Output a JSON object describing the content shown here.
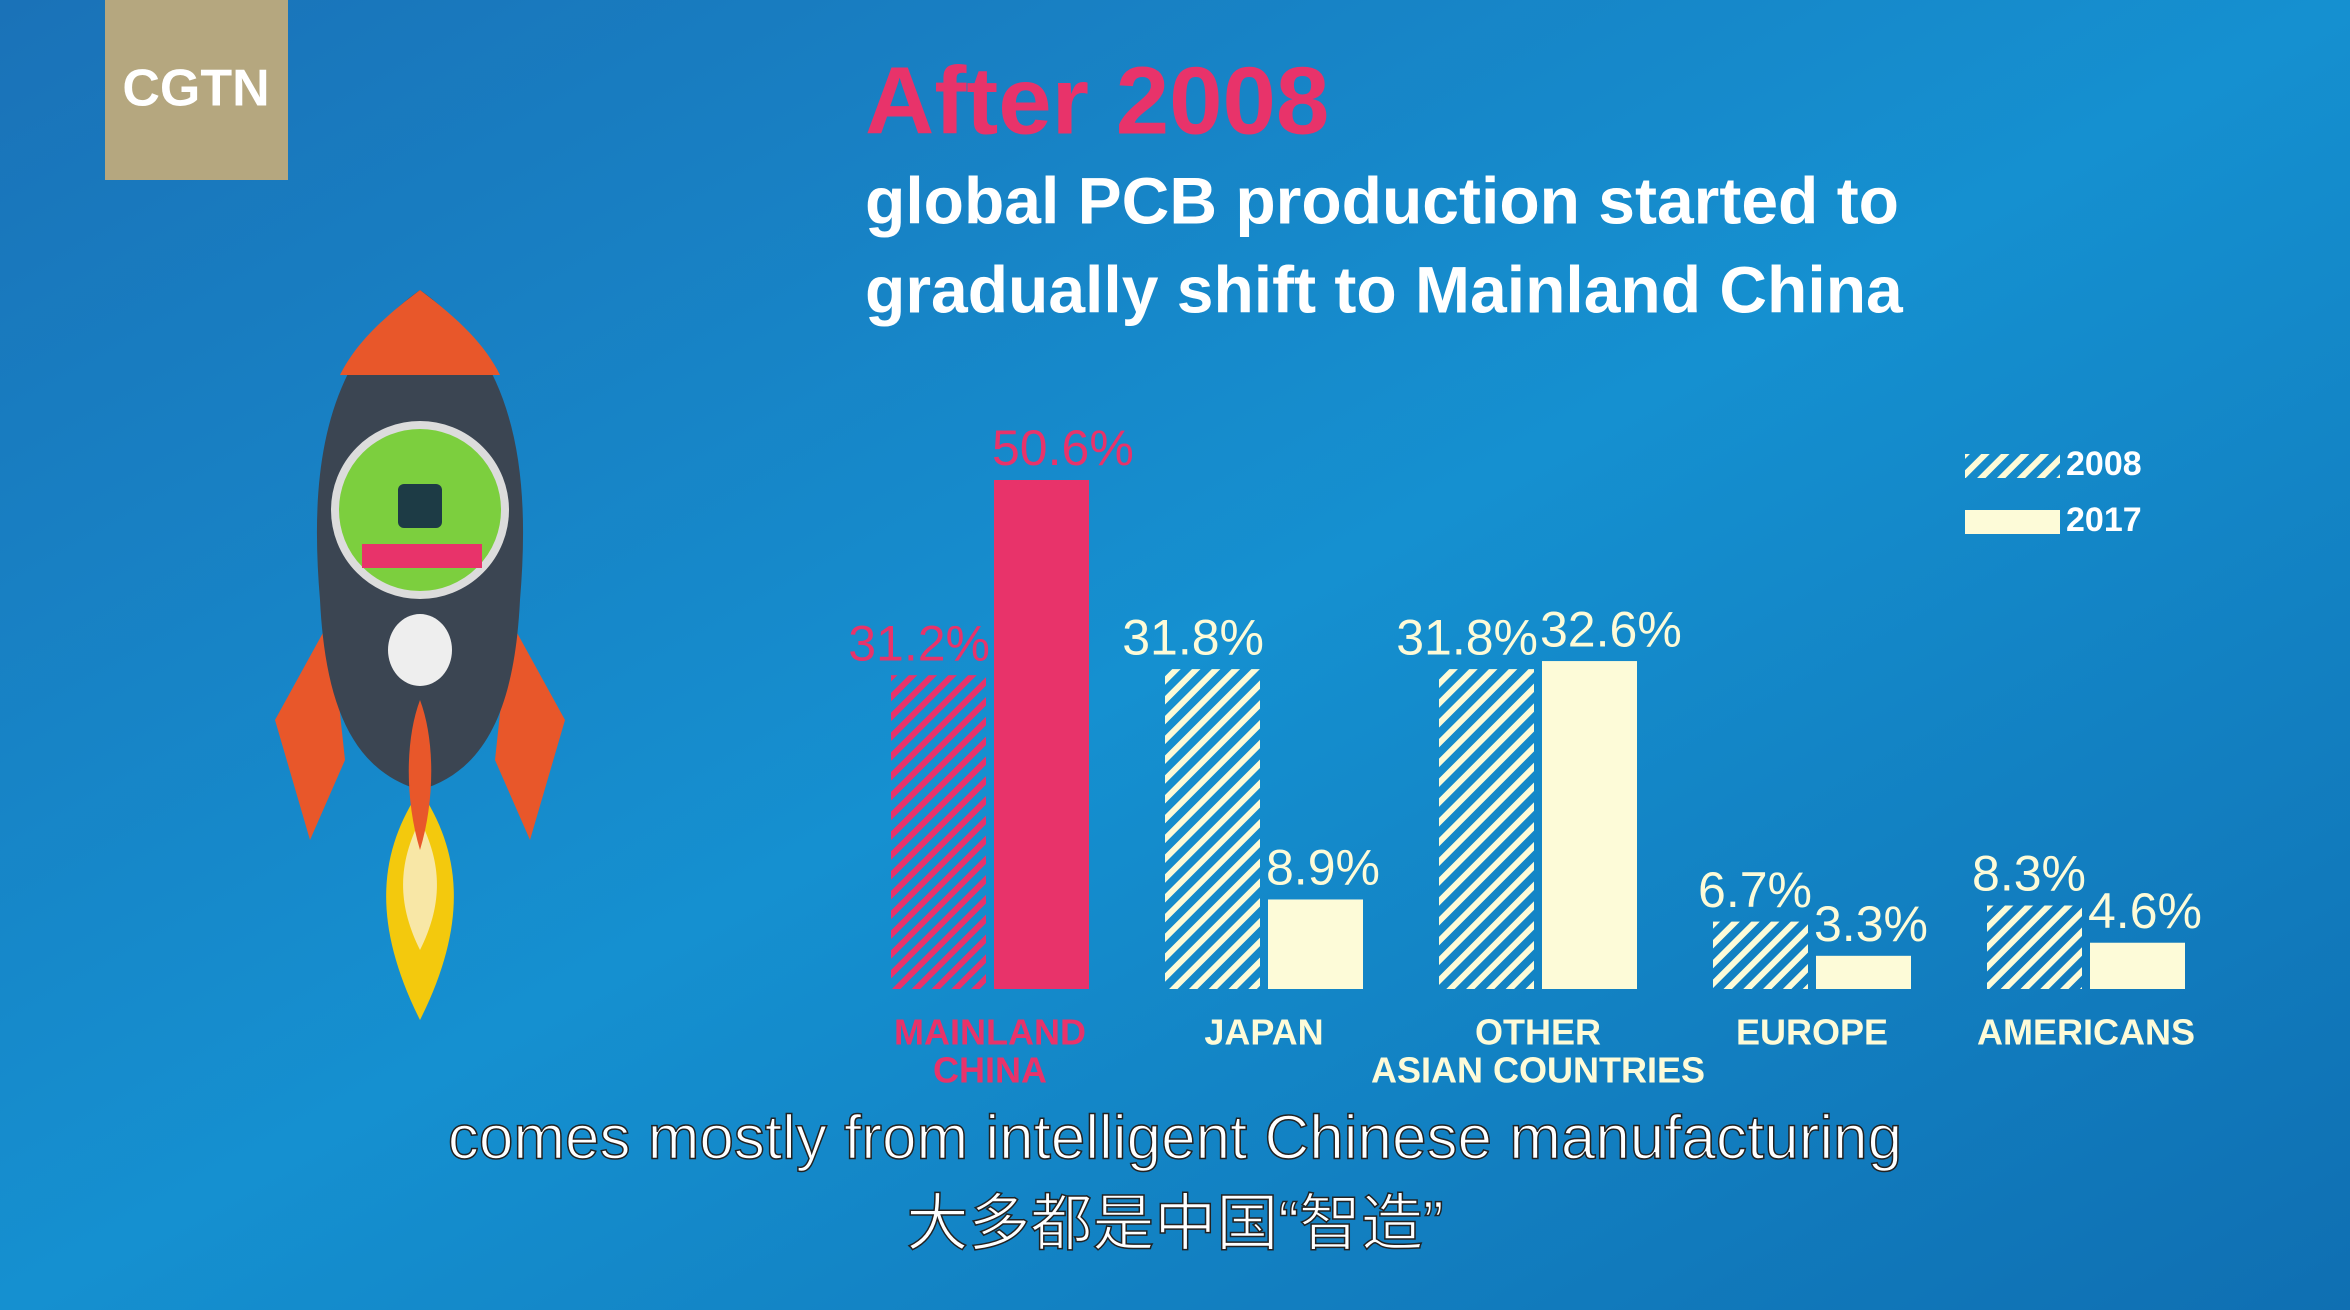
{
  "logo": "CGTN",
  "chart_data": {
    "type": "bar",
    "title": "After 2008",
    "subtitle_lines": [
      "global PCB production started to",
      "gradually shift to Mainland China"
    ],
    "categories": [
      [
        "MAINLAND",
        "CHINA"
      ],
      [
        "JAPAN"
      ],
      [
        "OTHER",
        "ASIAN COUNTRIES"
      ],
      [
        "EUROPE"
      ],
      [
        "AMERICANS"
      ]
    ],
    "category_colors": [
      "#e8336a",
      "#fdfbd8",
      "#fdfbd8",
      "#fdfbd8",
      "#fdfbd8"
    ],
    "series": [
      {
        "name": "2008",
        "color": "#fdfbd8",
        "hatched": true,
        "values": [
          31.2,
          31.8,
          31.8,
          6.7,
          8.3
        ],
        "value_labels": [
          "31.2%",
          "31.8%",
          "31.8%",
          "6.7%",
          "8.3%"
        ]
      },
      {
        "name": "2017",
        "color": "#fdfbd8",
        "hatched": false,
        "values": [
          50.6,
          8.9,
          32.6,
          3.3,
          4.6
        ],
        "value_labels": [
          "50.6%",
          "8.9%",
          "32.6%",
          "3.3%",
          "4.6%"
        ]
      }
    ],
    "legend": "top-right"
  },
  "captions": [
    "comes mostly from intelligent Chinese manufacturing",
    "大多都是中国“智造”"
  ]
}
